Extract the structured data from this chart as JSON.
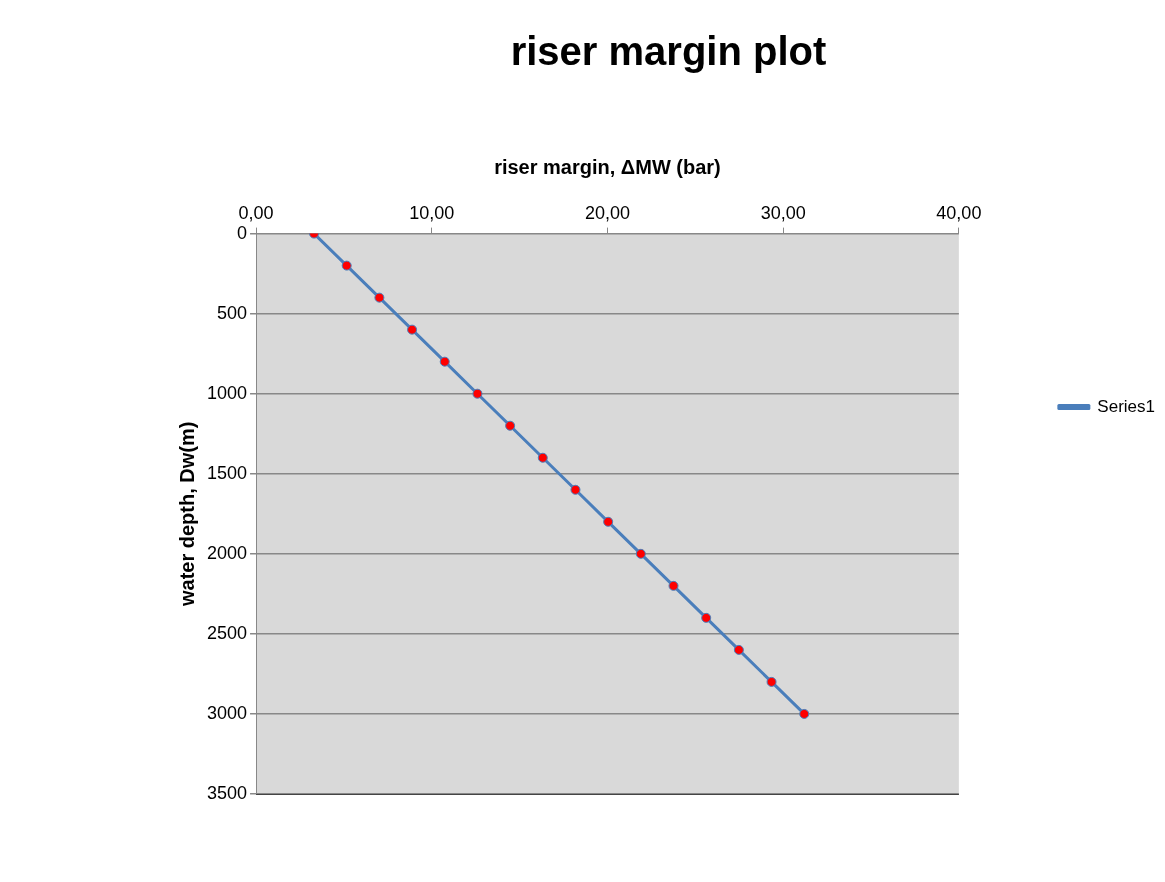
{
  "chart_data": {
    "type": "line",
    "title": "riser margin plot",
    "xlabel": "riser margin, ΔMW (bar)",
    "ylabel": "water depth, Dw(m)",
    "series": [
      {
        "name": "Series1",
        "color": "#4a7ebb",
        "x": [
          3.3,
          5.16,
          7.02,
          8.88,
          10.74,
          12.6,
          14.46,
          16.32,
          18.18,
          20.04,
          21.9,
          23.76,
          25.62,
          27.48,
          29.34,
          31.2
        ],
        "values": [
          0,
          200,
          400,
          600,
          800,
          1000,
          1200,
          1400,
          1600,
          1800,
          2000,
          2200,
          2400,
          2600,
          2800,
          3000
        ]
      }
    ],
    "xlim": [
      0,
      40
    ],
    "xticks": [
      {
        "value": 0,
        "label": "0,00"
      },
      {
        "value": 10,
        "label": "10,00"
      },
      {
        "value": 20,
        "label": "20,00"
      },
      {
        "value": 30,
        "label": "30,00"
      },
      {
        "value": 40,
        "label": "40,00"
      }
    ],
    "ylim": [
      3500,
      0
    ],
    "yticks": [
      0,
      500,
      1000,
      1500,
      2000,
      2500,
      3000,
      3500
    ],
    "grid": "y",
    "legend": "right",
    "marker": "circle",
    "line_style": "solid"
  }
}
